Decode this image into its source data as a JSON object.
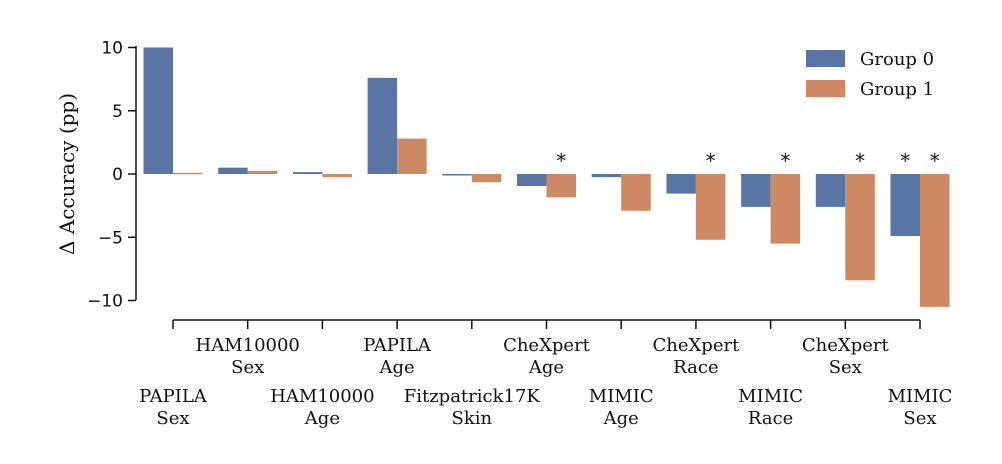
{
  "chart_data": {
    "type": "bar",
    "ylabel": "Δ Accuracy (pp)",
    "xlabel": "",
    "ylim": [
      -11.2,
      10.8
    ],
    "yticks": [
      -10,
      -5,
      0,
      5,
      10
    ],
    "ytick_labels": [
      "−10",
      "−5",
      "0",
      "5",
      "10"
    ],
    "grid": false,
    "legend_position": "top-right",
    "categories": [
      {
        "line1": "PAPILA",
        "line2": "Sex"
      },
      {
        "line1": "HAM10000",
        "line2": "Sex"
      },
      {
        "line1": "HAM10000",
        "line2": "Age"
      },
      {
        "line1": "PAPILA",
        "line2": "Age"
      },
      {
        "line1": "Fitzpatrick17K",
        "line2": "Skin"
      },
      {
        "line1": "CheXpert",
        "line2": "Age"
      },
      {
        "line1": "MIMIC",
        "line2": "Age"
      },
      {
        "line1": "CheXpert",
        "line2": "Race"
      },
      {
        "line1": "MIMIC",
        "line2": "Race"
      },
      {
        "line1": "CheXpert",
        "line2": "Sex"
      },
      {
        "line1": "MIMIC",
        "line2": "Sex"
      }
    ],
    "series": [
      {
        "name": "Group 0",
        "color": "#5975a4",
        "values": [
          10.0,
          0.5,
          0.15,
          7.6,
          -0.1,
          -0.95,
          -0.25,
          -1.55,
          -2.6,
          -2.6,
          -4.9
        ],
        "significant": [
          false,
          false,
          false,
          false,
          false,
          false,
          false,
          false,
          false,
          false,
          true
        ]
      },
      {
        "name": "Group 1",
        "color": "#cc8963",
        "values": [
          0.1,
          0.25,
          -0.25,
          2.8,
          -0.65,
          -1.85,
          -2.9,
          -5.2,
          -5.5,
          -8.4,
          -10.5
        ],
        "significant": [
          false,
          false,
          false,
          false,
          false,
          true,
          false,
          true,
          true,
          true,
          true
        ]
      }
    ],
    "significance_marker": "*"
  }
}
